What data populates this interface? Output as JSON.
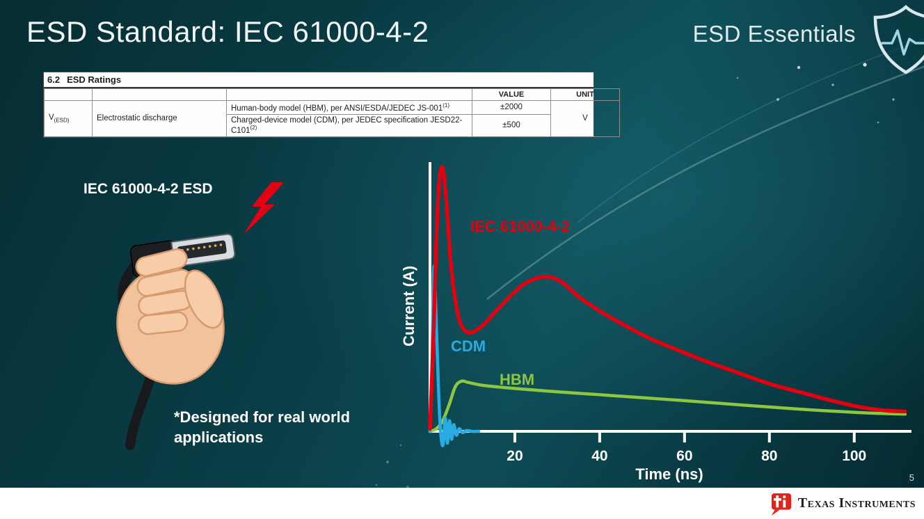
{
  "slide": {
    "title": "ESD Standard: IEC 61000-4-2",
    "series_label": "ESD Essentials",
    "page_number": "5",
    "illustration_label": "IEC 61000-4-2 ESD",
    "footnote": "*Designed for real world applications"
  },
  "ratings_table": {
    "section_number": "6.2",
    "section_title": "ESD Ratings",
    "value_header": "VALUE",
    "unit_header": "UNIT",
    "symbol": "V",
    "symbol_subscript": "(ESD)",
    "parameter": "Electrostatic discharge",
    "rows": [
      {
        "description": "Human-body model (HBM), per ANSI/ESDA/JEDEC JS-001",
        "superscript": "(1)",
        "value": "±2000"
      },
      {
        "description": "Charged-device model (CDM), per JEDEC specification JESD22-C101",
        "superscript": "(2)",
        "value": "±500"
      }
    ],
    "unit": "V"
  },
  "chart_data": {
    "type": "line",
    "title": "",
    "xlabel": "Time (ns)",
    "ylabel": "Current (A)",
    "xlim": [
      0,
      113
    ],
    "ylim": [
      -0.07,
      1.1
    ],
    "x_ticks": [
      20,
      40,
      60,
      80,
      100
    ],
    "grid": false,
    "legend_position": "inline-labels",
    "series": [
      {
        "name": "IEC 61000-4-2",
        "color": "#e3000f",
        "points": [
          [
            0,
            0.01
          ],
          [
            0.8,
            0.35
          ],
          [
            1.8,
            0.85
          ],
          [
            2.8,
            1.0
          ],
          [
            3.8,
            0.88
          ],
          [
            5,
            0.62
          ],
          [
            6.5,
            0.45
          ],
          [
            8,
            0.385
          ],
          [
            10,
            0.375
          ],
          [
            13,
            0.41
          ],
          [
            17,
            0.48
          ],
          [
            22,
            0.555
          ],
          [
            27,
            0.585
          ],
          [
            31,
            0.565
          ],
          [
            35,
            0.51
          ],
          [
            40,
            0.455
          ],
          [
            46,
            0.4
          ],
          [
            52,
            0.35
          ],
          [
            58,
            0.31
          ],
          [
            65,
            0.265
          ],
          [
            72,
            0.225
          ],
          [
            80,
            0.18
          ],
          [
            88,
            0.145
          ],
          [
            95,
            0.115
          ],
          [
            102,
            0.09
          ],
          [
            108,
            0.078
          ],
          [
            112,
            0.075
          ]
        ]
      },
      {
        "name": "CDM",
        "color": "#29abe2",
        "points": [
          [
            0,
            0
          ],
          [
            0.4,
            0.18
          ],
          [
            0.9,
            0.62
          ],
          [
            1.5,
            0.4
          ],
          [
            2.1,
            0.12
          ],
          [
            2.6,
            -0.02
          ],
          [
            3.1,
            -0.05
          ],
          [
            3.6,
            0.05
          ],
          [
            4.1,
            -0.045
          ],
          [
            4.6,
            0.04
          ],
          [
            5.1,
            -0.03
          ],
          [
            5.6,
            0.025
          ],
          [
            6.2,
            -0.015
          ],
          [
            6.9,
            0.01
          ],
          [
            7.7,
            -0.005
          ],
          [
            8.6,
            0.003
          ],
          [
            10,
            0
          ],
          [
            11.5,
            0
          ]
        ]
      },
      {
        "name": "HBM",
        "color": "#8dc63f",
        "points": [
          [
            0,
            0
          ],
          [
            1.5,
            0.01
          ],
          [
            3,
            0.04
          ],
          [
            4.5,
            0.1
          ],
          [
            6,
            0.17
          ],
          [
            7.5,
            0.19
          ],
          [
            9,
            0.185
          ],
          [
            12,
            0.175
          ],
          [
            16,
            0.168
          ],
          [
            20,
            0.162
          ],
          [
            28,
            0.152
          ],
          [
            36,
            0.143
          ],
          [
            44,
            0.134
          ],
          [
            52,
            0.125
          ],
          [
            60,
            0.116
          ],
          [
            70,
            0.104
          ],
          [
            80,
            0.092
          ],
          [
            90,
            0.081
          ],
          [
            100,
            0.072
          ],
          [
            106,
            0.068
          ],
          [
            112,
            0.065
          ]
        ]
      }
    ]
  },
  "footer": {
    "brand": "Texas Instruments"
  },
  "colors": {
    "iec_red": "#e3000f",
    "cdm_blue": "#29abe2",
    "hbm_green": "#8dc63f",
    "background_teal": "#0d4c56",
    "footer_white": "#ffffff",
    "ti_red": "#e2231a"
  },
  "icons": [
    "esd-shield-icon",
    "lightning-bolt-icon",
    "ti-logo-icon"
  ]
}
